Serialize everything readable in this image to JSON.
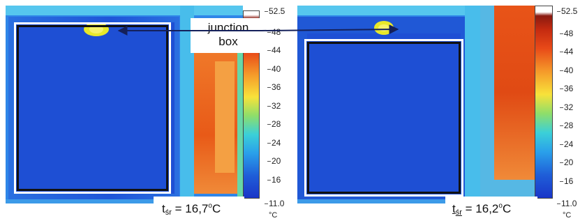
{
  "left_panel": {
    "scale_ticks": [
      "52.5",
      "48",
      "44",
      "40",
      "36",
      "32",
      "28",
      "24",
      "20",
      "16",
      "11.0"
    ],
    "unit": "°C",
    "temp_prefix": "t",
    "temp_sub": "śr",
    "temp_value": " = 16,7",
    "temp_sup": "o",
    "temp_unit": "C"
  },
  "right_panel": {
    "scale_ticks": [
      "52.5",
      "48",
      "44",
      "40",
      "36",
      "32",
      "28",
      "24",
      "20",
      "16",
      "11.0"
    ],
    "unit": "°C",
    "temp_prefix": "t",
    "temp_sub": "śr",
    "temp_value": " = 16,2",
    "temp_sup": "o",
    "temp_unit": "C"
  },
  "annotation": {
    "line1": "junction",
    "line2": "box"
  },
  "colors": {
    "cold": "#1a3fd8",
    "frame_cyan": "#3fb4e6",
    "hot": "#e8561c",
    "white": "#ffffff"
  }
}
